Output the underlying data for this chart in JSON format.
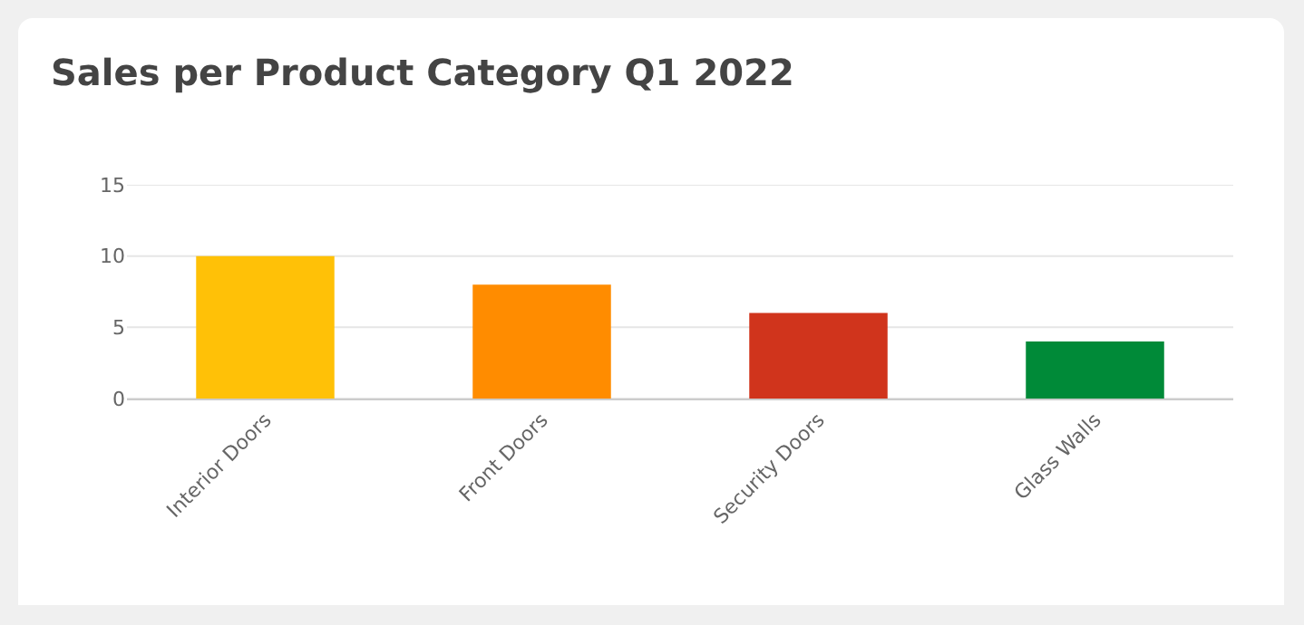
{
  "chart_data": {
    "type": "bar",
    "title": "Sales per Product Category Q1 2022",
    "categories": [
      "Interior Doors",
      "Front Doors",
      "Security Doors",
      "Glass Walls"
    ],
    "values": [
      10,
      8,
      6,
      4
    ],
    "colors": [
      "#ffc107",
      "#ff8c00",
      "#d0341c",
      "#008a38"
    ],
    "ylim": [
      0,
      15
    ],
    "yticks": [
      0,
      5,
      10,
      15
    ],
    "grid": "y"
  }
}
